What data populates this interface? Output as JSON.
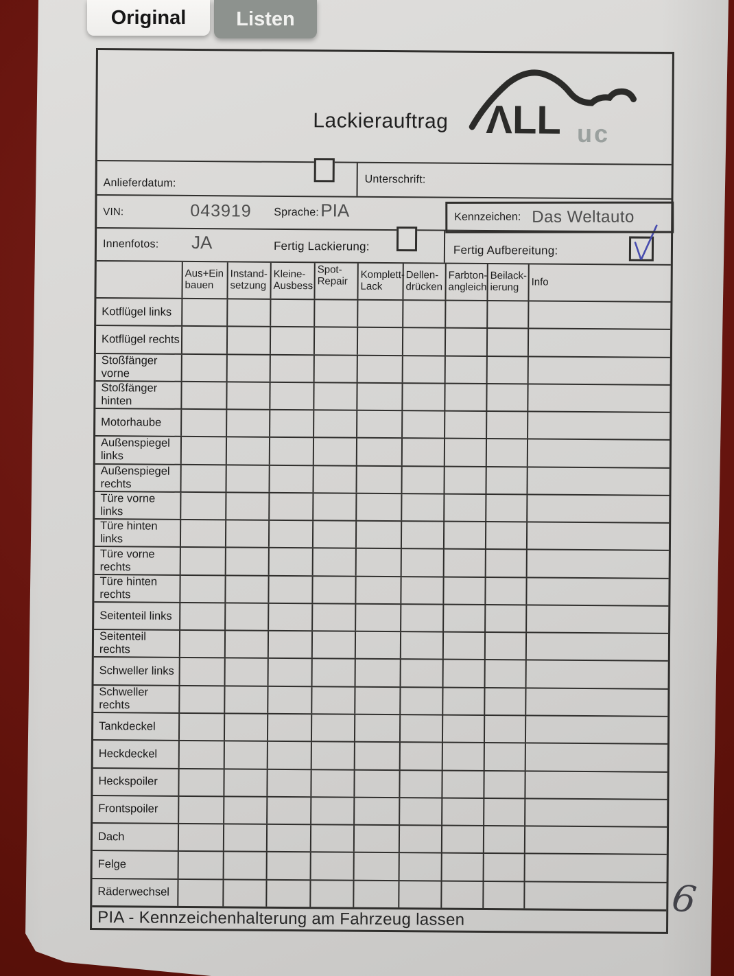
{
  "tabs": [
    {
      "label": "Original",
      "active": true
    },
    {
      "label": "Listen",
      "active": false
    }
  ],
  "header": {
    "title": "Lackierauftrag",
    "logo_main": "ΛLL",
    "logo_sub": "uc",
    "logo_icon": "car-silhouette"
  },
  "fields": {
    "anlieferdatum": {
      "label": "Anlieferdatum:",
      "checked": false
    },
    "unterschrift": {
      "label": "Unterschrift:",
      "value": ""
    },
    "vin": {
      "label": "VIN:",
      "value": "043919"
    },
    "sprache": {
      "label": "Sprache:",
      "value": "PIA"
    },
    "kennzeichen": {
      "label": "Kennzeichen:",
      "value": "Das Weltauto"
    },
    "innenfotos": {
      "label": "Innenfotos:",
      "value": "JA"
    },
    "fertig_lackierung": {
      "label": "Fertig Lackierung:",
      "checked": false
    },
    "fertig_aufbereitung": {
      "label": "Fertig Aufbereitung:",
      "checked": true
    }
  },
  "table": {
    "columns": [
      "Aus+Ein\nbauen",
      "Instand-\nsetzung",
      "Kleine-\nAusbess",
      "Spot-\nRepair",
      "Komplett-\nLack",
      "Dellen-\ndrücken",
      "Farbton-\nangleich",
      "Beilack-\nierung",
      "Info"
    ],
    "rows": [
      "Kotflügel links",
      "Kotflügel rechts",
      "Stoßfänger vorne",
      "Stoßfänger hinten",
      "Motorhaube",
      "Außenspiegel links",
      "Außenspiegel rechts",
      "Türe vorne links",
      "Türe hinten links",
      "Türe vorne rechts",
      "Türe hinten rechts",
      "Seitenteil links",
      "Seitenteil rechts",
      "Schweller links",
      "Schweller rechts",
      "Tankdeckel",
      "Heckdeckel",
      "Heckspoiler",
      "Frontspoiler",
      "Dach",
      "Felge",
      "Räderwechsel"
    ],
    "cell_values": []
  },
  "footer": {
    "note": "PIA - Kennzeichenhalterung am Fahrzeug lassen",
    "page_number": "6"
  },
  "colors": {
    "background_red": "#68150f",
    "paper": "#d6d5d3",
    "line": "#2f2e2c",
    "check_blue": "#474cae",
    "tab_active_bg": "#f4f3f1",
    "tab_inactive_bg": "#8d928e",
    "logo_gray": "#9aa09e"
  }
}
